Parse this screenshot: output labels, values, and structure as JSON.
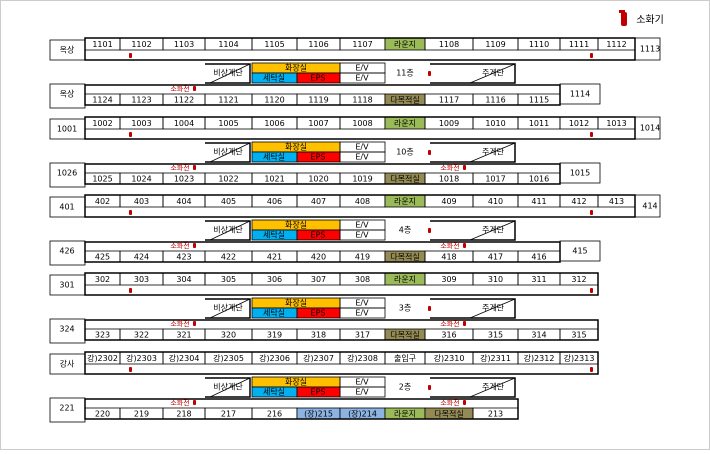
{
  "legend": {
    "label": "소화기"
  },
  "floors": [
    {
      "top_left": "옥상",
      "top_rooms": [
        "1101",
        "1102",
        "1103",
        "1104",
        "1105",
        "1106",
        "1107",
        {
          "label": "라운지",
          "color": "#9bbb59"
        },
        "1108",
        "1109",
        "1110",
        "1111",
        "1112"
      ],
      "top_right": "1113",
      "stair_left": "비상계단",
      "toilet": {
        "label": "화장실",
        "color": "#ffc000"
      },
      "laundry": {
        "label": "세탁실",
        "color": "#00b0f0"
      },
      "eps": {
        "label": "EPS",
        "color": "#ff0000"
      },
      "elevators": [
        "E/V",
        "E/V"
      ],
      "floor_label": "11층",
      "stair_main": "주계단",
      "hydrants": [
        "소화전"
      ],
      "bottom_left": "옥상",
      "bottom_rooms": [
        "1124",
        "1123",
        "1122",
        "1121",
        "1120",
        "1119",
        "1118",
        {
          "label": "다목적실",
          "color": "#948a54"
        },
        "1117",
        "1116",
        "1115"
      ],
      "bottom_right": "1114"
    },
    {
      "top_left": "1001",
      "top_rooms": [
        "1002",
        "1003",
        "1004",
        "1005",
        "1006",
        "1007",
        "1008",
        {
          "label": "라운지",
          "color": "#9bbb59"
        },
        "1009",
        "1010",
        "1011",
        "1012",
        "1013"
      ],
      "top_right": "1014",
      "stair_left": "비상계단",
      "toilet": {
        "label": "화장실",
        "color": "#ffc000"
      },
      "laundry": {
        "label": "세탁실",
        "color": "#00b0f0"
      },
      "eps": {
        "label": "EPS",
        "color": "#ff0000"
      },
      "elevators": [
        "E/V",
        "E/V"
      ],
      "floor_label": "10층",
      "stair_main": "주계단",
      "hydrants": [
        "소화전",
        "소화전"
      ],
      "bottom_left": "1026",
      "bottom_rooms": [
        "1025",
        "1024",
        "1023",
        "1022",
        "1021",
        "1020",
        "1019",
        {
          "label": "다목적실",
          "color": "#948a54"
        },
        "1018",
        "1017",
        "1016"
      ],
      "bottom_right": "1015"
    },
    {
      "top_left": "401",
      "top_rooms": [
        "402",
        "403",
        "404",
        "405",
        "406",
        "407",
        "408",
        {
          "label": "라운지",
          "color": "#9bbb59"
        },
        "409",
        "410",
        "411",
        "412",
        "413"
      ],
      "top_right": "414",
      "stair_left": "비상계단",
      "toilet": {
        "label": "화장실",
        "color": "#ffc000"
      },
      "laundry": {
        "label": "세탁실",
        "color": "#00b0f0"
      },
      "eps": {
        "label": "EPS",
        "color": "#ff0000"
      },
      "elevators": [
        "E/V",
        "E/V"
      ],
      "floor_label": "4층",
      "stair_main": "주계단",
      "hydrants": [
        "소화전",
        "소화전"
      ],
      "bottom_left": "426",
      "bottom_rooms": [
        "425",
        "424",
        "423",
        "422",
        "421",
        "420",
        "419",
        {
          "label": "다목적실",
          "color": "#948a54"
        },
        "418",
        "417",
        "416"
      ],
      "bottom_right": "415"
    },
    {
      "top_left": "301",
      "top_rooms": [
        "302",
        "303",
        "304",
        "305",
        "306",
        "307",
        "308",
        {
          "label": "라운지",
          "color": "#9bbb59"
        },
        "309",
        "310",
        "311",
        "312"
      ],
      "stair_left": "비상계단",
      "toilet": {
        "label": "화장실",
        "color": "#ffc000"
      },
      "laundry": {
        "label": "세탁실",
        "color": "#00b0f0"
      },
      "eps": {
        "label": "EPS",
        "color": "#ff0000"
      },
      "elevators": [
        "E/V",
        "E/V"
      ],
      "floor_label": "3층",
      "stair_main": "주계단",
      "hydrants": [
        "소화전",
        "소화전"
      ],
      "bottom_left": "324",
      "bottom_rooms": [
        "323",
        "322",
        "321",
        "320",
        "319",
        "318",
        "317",
        {
          "label": "다목적실",
          "color": "#948a54"
        },
        "316",
        "315",
        "314",
        "315"
      ]
    },
    {
      "top_left": "강사",
      "top_rooms": [
        "강)2302",
        "강)2303",
        "강)2304",
        "강)2305",
        "강)2306",
        "강)2307",
        "강)2308",
        "출입구",
        "강)2310",
        "강)2311",
        "강)2312",
        "강)2313"
      ],
      "stair_left": "비상계단",
      "toilet": {
        "label": "화장실",
        "color": "#ffc000"
      },
      "laundry": {
        "label": "세탁실",
        "color": "#00b0f0"
      },
      "eps": {
        "label": "EPS",
        "color": "#ff0000"
      },
      "elevators": [
        "E/V",
        "E/V"
      ],
      "floor_label": "2층",
      "stair_main": "주계단",
      "hydrants": [
        "소화전",
        "소화전"
      ],
      "bottom_left": "221",
      "bottom_rooms": [
        "220",
        "219",
        "218",
        "217",
        "216",
        {
          "label": "(장)215",
          "color": "#8db3e2"
        },
        {
          "label": "(장)214",
          "color": "#8db3e2"
        },
        {
          "label": "라운지",
          "color": "#9bbb59"
        },
        {
          "label": "다목적실",
          "color": "#948a54"
        },
        "213"
      ]
    }
  ]
}
